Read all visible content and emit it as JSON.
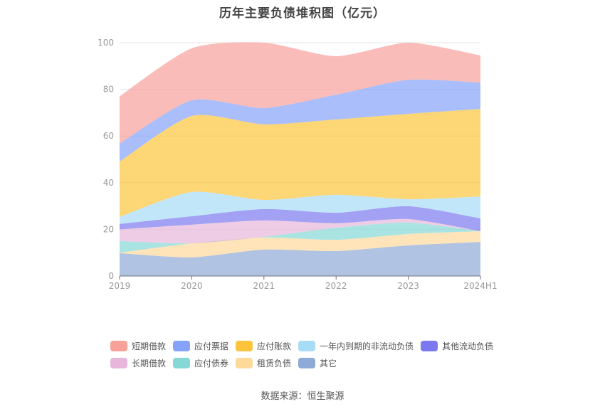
{
  "title": "历年主要负债堆积图（亿元）",
  "source": "数据来源：恒生聚源",
  "chart_data": {
    "type": "area",
    "stacked": true,
    "title": "历年主要负债堆积图（亿元）",
    "xlabel": "",
    "ylabel": "",
    "ylim": [
      0,
      100
    ],
    "yticks": [
      0,
      20,
      40,
      60,
      80,
      100
    ],
    "grid": true,
    "legend_position": "bottom",
    "categories": [
      "2019",
      "2020",
      "2021",
      "2022",
      "2023",
      "2024H1"
    ],
    "series": [
      {
        "name": "其它",
        "color": "#8eaad6",
        "values": [
          9.8,
          8.0,
          11.3,
          10.7,
          13.1,
          14.6
        ]
      },
      {
        "name": "租赁负债",
        "color": "#fdd99a",
        "values": [
          0.2,
          6.0,
          5.2,
          4.8,
          4.9,
          4.6
        ]
      },
      {
        "name": "应付债券",
        "color": "#86d8d6",
        "values": [
          5.0,
          0.0,
          0.3,
          5.2,
          4.9,
          0.0
        ]
      },
      {
        "name": "长期借款",
        "color": "#e8b6da",
        "values": [
          5.0,
          8.0,
          7.0,
          1.9,
          1.5,
          0.0
        ]
      },
      {
        "name": "其他流动负债",
        "color": "#7b79f0",
        "values": [
          2.3,
          3.6,
          4.9,
          4.5,
          5.5,
          5.5
        ]
      },
      {
        "name": "一年内到期的非流动负债",
        "color": "#a7dcf7",
        "values": [
          3.0,
          10.4,
          3.9,
          7.7,
          3.0,
          9.4
        ]
      },
      {
        "name": "应付账款",
        "color": "#fcc43c",
        "values": [
          23.7,
          32.6,
          32.4,
          32.3,
          36.6,
          37.5
        ]
      },
      {
        "name": "应付票据",
        "color": "#85a3f8",
        "values": [
          7.7,
          6.7,
          7.0,
          10.6,
          14.6,
          11.3
        ]
      },
      {
        "name": "短期借款",
        "color": "#f8a09a",
        "values": [
          20.3,
          22.3,
          28.0,
          16.5,
          15.9,
          11.6
        ]
      }
    ]
  },
  "legend": [
    [
      {
        "label": "短期借款",
        "color": "#f8a09a"
      },
      {
        "label": "应付票据",
        "color": "#85a3f8"
      },
      {
        "label": "应付账款",
        "color": "#fcc43c"
      },
      {
        "label": "一年内到期的非流动负债",
        "color": "#a7dcf7"
      },
      {
        "label": "其他流动负债",
        "color": "#7b79f0"
      }
    ],
    [
      {
        "label": "长期借款",
        "color": "#e8b6da"
      },
      {
        "label": "应付债券",
        "color": "#86d8d6"
      },
      {
        "label": "租赁负债",
        "color": "#fdd99a"
      },
      {
        "label": "其它",
        "color": "#8eaad6"
      }
    ]
  ]
}
